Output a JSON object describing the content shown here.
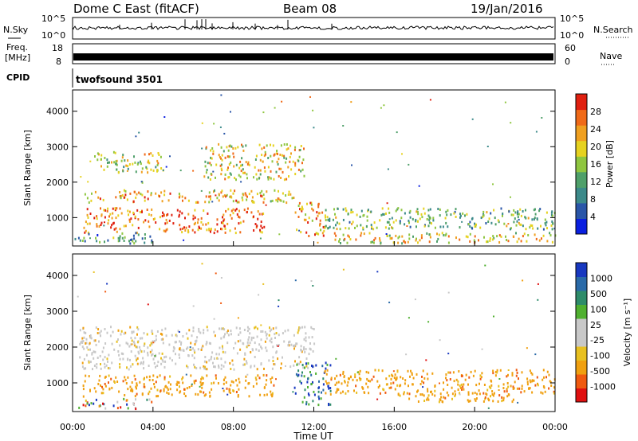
{
  "header": {
    "station": "Dome C East (fitACF)",
    "beam": "Beam 08",
    "date": "19/Jan/2016"
  },
  "strips": {
    "nsky_label": "N.Sky",
    "nsky_ticks": [
      "10^5",
      "10^0"
    ],
    "nsearch_label": "N.Search",
    "freq_label_line1": "Freq.",
    "freq_label_line2": "[MHz]",
    "freq_ticks": [
      "18",
      "8"
    ],
    "nave_ticks": [
      "60",
      "0"
    ],
    "nave_label": "Nave",
    "cpid_label": "CPID",
    "cpid_value": "twofsound 3501"
  },
  "colors": {
    "power": [
      "#0a1fe0",
      "#2a56a8",
      "#3c8a8a",
      "#4fa06a",
      "#8fc640",
      "#e6d220",
      "#f0a020",
      "#f06a18",
      "#e02010"
    ],
    "velocity": [
      "#e01010",
      "#f05a10",
      "#f0a010",
      "#e8c020",
      "#c8c8c8",
      "#c8c8c8",
      "#50b030",
      "#2e8c6a",
      "#2a6aa8",
      "#1838c0"
    ],
    "grey_scatter": "#c8c8c8"
  },
  "chart_data": [
    {
      "type": "heatmap",
      "title": "Power",
      "ylabel": "Slant Range [km]",
      "xlabel": "Time UT",
      "x_ticks": [
        "00:00",
        "04:00",
        "08:00",
        "12:00",
        "16:00",
        "20:00",
        "00:00"
      ],
      "y_ticks": [
        "1000",
        "2000",
        "3000",
        "4000"
      ],
      "ylim": [
        200,
        4600
      ],
      "xlim": [
        0,
        24
      ],
      "colorbar": {
        "label": "Power [dB]",
        "ticks": [
          "4",
          "8",
          "12",
          "16",
          "20",
          "24",
          "28"
        ],
        "range": [
          0,
          32
        ]
      },
      "structures": [
        {
          "x0": 0.3,
          "x1": 11.0,
          "y0": 1450,
          "y1": 1800,
          "level": 22
        },
        {
          "x0": 0.5,
          "x1": 9.5,
          "y0": 600,
          "y1": 1300,
          "level": 26
        },
        {
          "x0": 1.0,
          "x1": 4.5,
          "y0": 2300,
          "y1": 2900,
          "level": 18
        },
        {
          "x0": 6.5,
          "x1": 11.5,
          "y0": 2100,
          "y1": 3100,
          "level": 20
        },
        {
          "x0": 11.0,
          "x1": 12.5,
          "y0": 500,
          "y1": 1500,
          "level": 24
        },
        {
          "x0": 12.5,
          "x1": 24.0,
          "y0": 700,
          "y1": 1300,
          "level": 14
        },
        {
          "x0": 13.0,
          "x1": 24.0,
          "y0": 300,
          "y1": 600,
          "level": 20
        },
        {
          "x0": 0.0,
          "x1": 4.0,
          "y0": 300,
          "y1": 600,
          "level": 10
        }
      ]
    },
    {
      "type": "heatmap",
      "title": "Velocity",
      "ylabel": "Slant Range [km]",
      "xlabel": "Time UT",
      "x_ticks": [
        "00:00",
        "04:00",
        "08:00",
        "12:00",
        "16:00",
        "20:00",
        "00:00"
      ],
      "y_ticks": [
        "1000",
        "2000",
        "3000",
        "4000"
      ],
      "ylim": [
        200,
        4600
      ],
      "xlim": [
        0,
        24
      ],
      "colorbar": {
        "label": "Velocity [m s⁻¹]",
        "ticks": [
          "-1000",
          "-500",
          "-100",
          "-25",
          "25",
          "100",
          "500",
          "1000"
        ]
      },
      "structures": [
        {
          "x0": 0.3,
          "x1": 12.0,
          "y0": 1400,
          "y1": 2600,
          "kind": "grey"
        },
        {
          "x0": 0.5,
          "x1": 10.0,
          "y0": 650,
          "y1": 1250,
          "kind": "neg"
        },
        {
          "x0": 11.0,
          "x1": 12.8,
          "y0": 400,
          "y1": 1600,
          "kind": "pos"
        },
        {
          "x0": 12.5,
          "x1": 24.0,
          "y0": 700,
          "y1": 1400,
          "kind": "neg"
        },
        {
          "x0": 16.0,
          "x1": 22.0,
          "y0": 500,
          "y1": 800,
          "kind": "neg"
        },
        {
          "x0": 0.0,
          "x1": 4.0,
          "y0": 300,
          "y1": 600,
          "kind": "mixed"
        }
      ]
    }
  ]
}
